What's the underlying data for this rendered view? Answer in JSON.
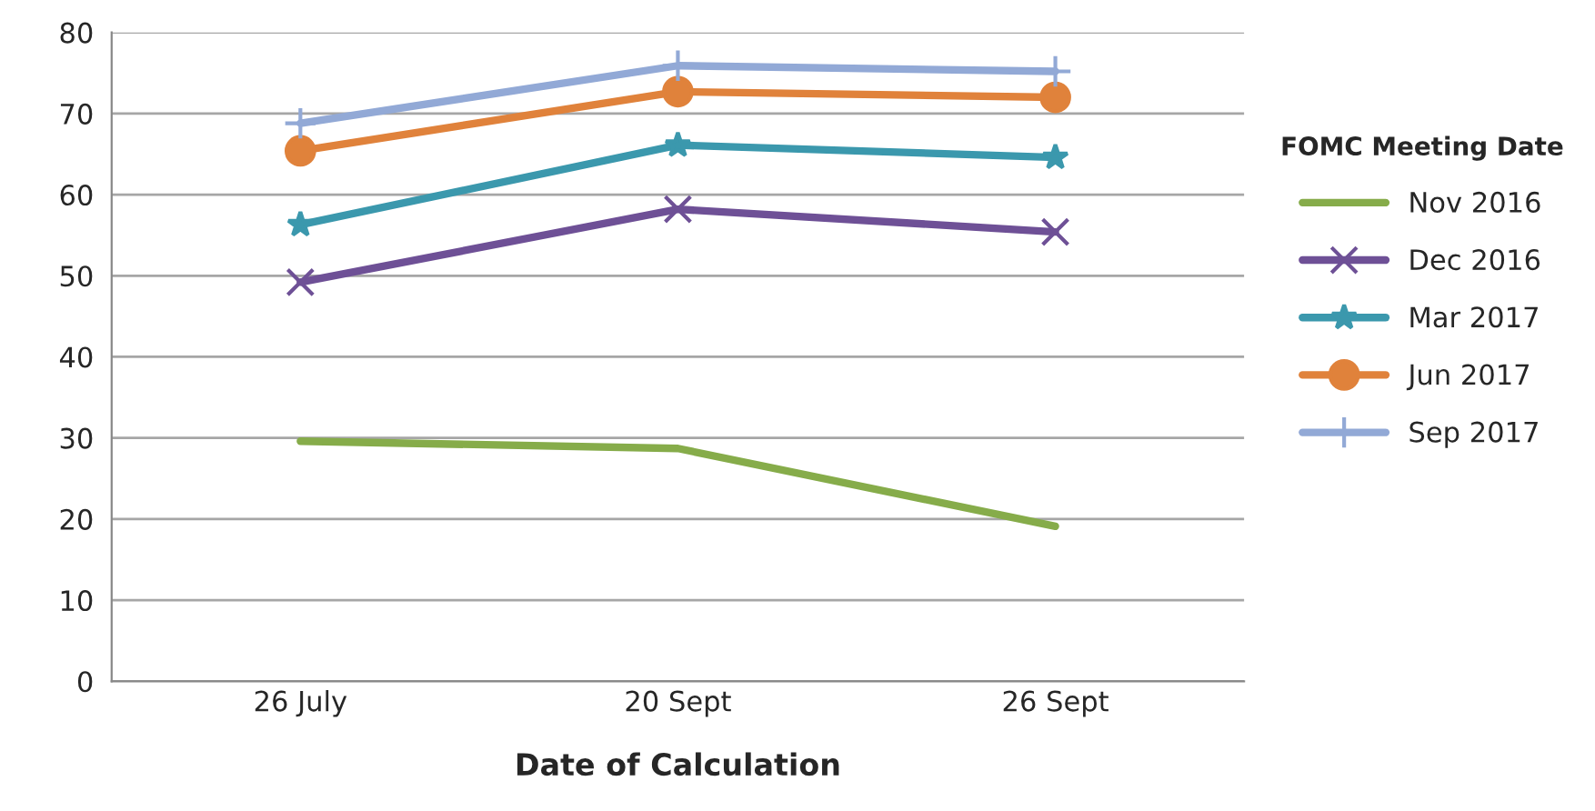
{
  "chart_data": {
    "type": "line",
    "xlabel": "Date of Calculation",
    "legend_title": "FOMC Meeting Date",
    "categories": [
      "26 July",
      "20 Sept",
      "26 Sept"
    ],
    "series": [
      {
        "name": "Nov 2016",
        "color": "#86ac4a",
        "marker": "none",
        "values": [
          29.6,
          28.7,
          19.1
        ]
      },
      {
        "name": "Dec 2016",
        "color": "#6e5096",
        "marker": "cross",
        "values": [
          49.2,
          58.2,
          55.4
        ]
      },
      {
        "name": "Mar 2017",
        "color": "#3b98ad",
        "marker": "star",
        "values": [
          56.3,
          66.1,
          64.6
        ]
      },
      {
        "name": "Jun 2017",
        "color": "#e0823b",
        "marker": "circle",
        "values": [
          65.4,
          72.7,
          72.0
        ]
      },
      {
        "name": "Sep 2017",
        "color": "#92a9d6",
        "marker": "plus",
        "values": [
          68.8,
          75.9,
          75.2
        ]
      }
    ],
    "ylim": [
      0,
      80
    ],
    "yticks": [
      0,
      10,
      20,
      30,
      40,
      50,
      60,
      70,
      80
    ],
    "grid": "y",
    "legend": "right"
  }
}
